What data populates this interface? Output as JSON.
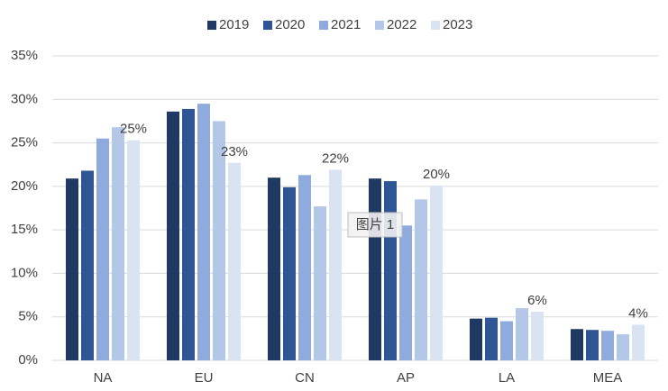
{
  "chart_data": {
    "type": "bar",
    "categories": [
      "NA",
      "EU",
      "CN",
      "AP",
      "LA",
      "MEA"
    ],
    "series": [
      {
        "name": "2019",
        "color": "#203864",
        "values": [
          20.9,
          28.6,
          21.0,
          20.9,
          4.8,
          3.6
        ]
      },
      {
        "name": "2020",
        "color": "#2f5597",
        "values": [
          21.8,
          28.9,
          19.9,
          20.6,
          4.9,
          3.5
        ]
      },
      {
        "name": "2021",
        "color": "#8faadc",
        "values": [
          25.5,
          29.5,
          21.3,
          15.5,
          4.5,
          3.4
        ]
      },
      {
        "name": "2022",
        "color": "#b4c7e7",
        "values": [
          26.8,
          27.5,
          17.7,
          18.5,
          6.0,
          3.0
        ]
      },
      {
        "name": "2023",
        "color": "#dae3f3",
        "values": [
          25.3,
          22.7,
          21.9,
          20.1,
          5.6,
          4.1
        ],
        "value_labels": [
          "25%",
          "23%",
          "22%",
          "20%",
          "6%",
          "4%"
        ]
      }
    ],
    "ylim": [
      0,
      35
    ],
    "yticks": [
      {
        "value": 0,
        "label": "0%"
      },
      {
        "value": 5,
        "label": "5%"
      },
      {
        "value": 10,
        "label": "10%"
      },
      {
        "value": 15,
        "label": "15%"
      },
      {
        "value": 20,
        "label": "20%"
      },
      {
        "value": 25,
        "label": "25%"
      },
      {
        "value": 30,
        "label": "30%"
      },
      {
        "value": 35,
        "label": "35%"
      }
    ],
    "grid": true,
    "legend": "top",
    "annotation": "图片 1"
  }
}
